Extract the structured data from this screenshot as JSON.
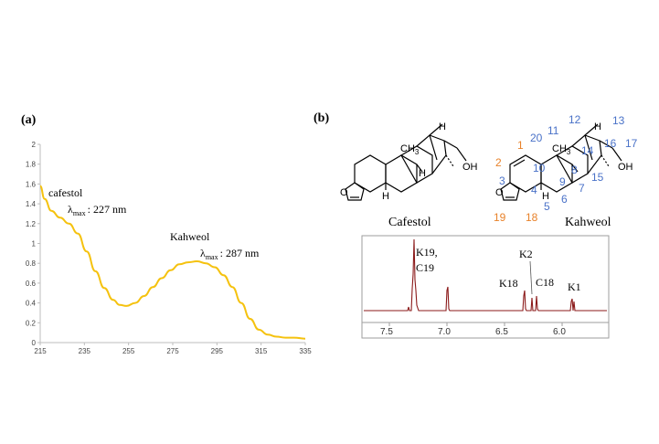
{
  "panel_a": {
    "label": "(a)",
    "annotations": [
      {
        "name": "cafestol",
        "lambda_value": ": 227 nm"
      },
      {
        "name": "Kahweol",
        "lambda_value": ": 287 nm"
      }
    ],
    "lambda_symbol": "λ",
    "lambda_sub": "max"
  },
  "panel_b": {
    "label": "(b)",
    "molecule_names": [
      "Cafestol",
      "Kahweol"
    ],
    "ch3_label": "CH",
    "ch3_sub": "3",
    "h_label": "H",
    "o_label": "O",
    "oh_label": "OH",
    "kahweol_numbering": {
      "orange": [
        "1",
        "2",
        "19",
        "18"
      ],
      "blue": [
        "20",
        "11",
        "12",
        "13",
        "16",
        "17",
        "14",
        "15",
        "10",
        "9",
        "8",
        "7",
        "6",
        "4",
        "5",
        "3"
      ]
    },
    "nmr_peak_labels": [
      "K19,",
      "C19",
      "K2",
      "K18",
      "C18",
      "K1"
    ],
    "nmr_ticks": [
      "7.5",
      "7.0",
      "6.5",
      "6.0"
    ]
  },
  "chart_data": {
    "type": "line",
    "title": "",
    "xlabel": "",
    "ylabel": "",
    "xlim": [
      215,
      335
    ],
    "ylim": [
      0,
      2
    ],
    "x_ticks": [
      "215",
      "235",
      "255",
      "275",
      "295",
      "315",
      "335"
    ],
    "y_ticks": [
      "0",
      "0.2",
      "0.4",
      "0.6",
      "0.8",
      "1",
      "1.2",
      "1.4",
      "1.6",
      "1.8",
      "2"
    ],
    "grid": false,
    "legend": "none",
    "line_color": "#f5c20f",
    "series": [
      {
        "x": [
          215,
          217,
          220,
          224,
          228,
          232,
          236,
          240,
          244,
          248,
          251,
          254,
          258,
          262,
          266,
          270,
          274,
          278,
          282,
          286,
          290,
          294,
          298,
          302,
          306,
          310,
          314,
          318,
          322,
          326,
          330,
          335
        ],
        "values": [
          1.58,
          1.45,
          1.33,
          1.26,
          1.2,
          1.1,
          0.92,
          0.72,
          0.55,
          0.43,
          0.38,
          0.37,
          0.4,
          0.47,
          0.56,
          0.65,
          0.73,
          0.79,
          0.81,
          0.82,
          0.8,
          0.76,
          0.68,
          0.56,
          0.4,
          0.24,
          0.13,
          0.08,
          0.06,
          0.05,
          0.05,
          0.04
        ]
      }
    ]
  }
}
